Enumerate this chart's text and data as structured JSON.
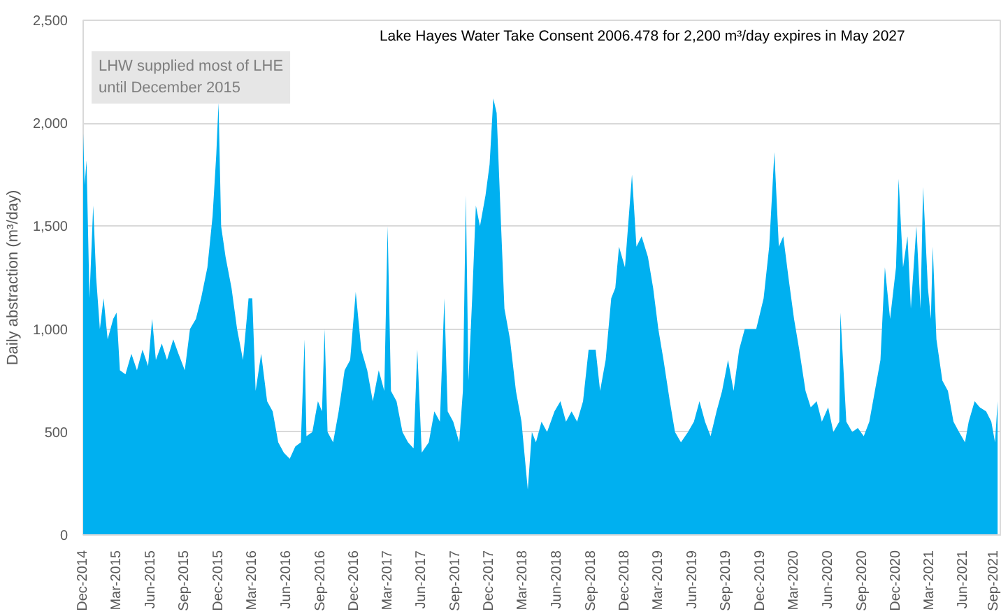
{
  "chart_data": {
    "type": "area",
    "ylabel": "Daily abstraction (m³/day)",
    "annotations": [
      "Lake Hayes Water Take Consent 2006.478 for 2,200 m³/day expires in May 2027",
      "LHW supplied most of LHE\nuntil December 2015"
    ],
    "x": [
      "2014-12-01",
      "2014-12-05",
      "2014-12-10",
      "2014-12-18",
      "2014-12-28",
      "2015-01-05",
      "2015-01-15",
      "2015-01-25",
      "2015-02-05",
      "2015-02-20",
      "2015-03-01",
      "2015-03-10",
      "2015-03-25",
      "2015-04-10",
      "2015-04-25",
      "2015-05-10",
      "2015-05-25",
      "2015-06-05",
      "2015-06-15",
      "2015-07-01",
      "2015-07-15",
      "2015-08-01",
      "2015-08-15",
      "2015-09-01",
      "2015-09-15",
      "2015-10-01",
      "2015-10-15",
      "2015-11-01",
      "2015-11-15",
      "2015-11-25",
      "2015-12-01",
      "2015-12-08",
      "2015-12-20",
      "2016-01-05",
      "2016-01-20",
      "2016-02-05",
      "2016-02-20",
      "2016-03-01",
      "2016-03-10",
      "2016-03-25",
      "2016-04-10",
      "2016-04-25",
      "2016-05-10",
      "2016-05-25",
      "2016-06-10",
      "2016-06-25",
      "2016-07-10",
      "2016-07-20",
      "2016-07-25",
      "2016-08-10",
      "2016-08-25",
      "2016-09-05",
      "2016-09-12",
      "2016-09-20",
      "2016-10-05",
      "2016-10-20",
      "2016-11-05",
      "2016-11-20",
      "2016-12-05",
      "2016-12-20",
      "2017-01-05",
      "2017-01-20",
      "2017-02-05",
      "2017-02-20",
      "2017-03-01",
      "2017-03-10",
      "2017-03-25",
      "2017-04-10",
      "2017-04-25",
      "2017-05-10",
      "2017-05-20",
      "2017-06-01",
      "2017-06-20",
      "2017-07-05",
      "2017-07-20",
      "2017-08-01",
      "2017-08-10",
      "2017-08-25",
      "2017-09-10",
      "2017-09-20",
      "2017-09-28",
      "2017-10-05",
      "2017-10-15",
      "2017-10-25",
      "2017-11-05",
      "2017-11-20",
      "2017-12-01",
      "2017-12-11",
      "2017-12-20",
      "2018-01-01",
      "2018-01-10",
      "2018-01-25",
      "2018-02-10",
      "2018-02-25",
      "2018-03-14",
      "2018-03-25",
      "2018-04-05",
      "2018-04-20",
      "2018-05-05",
      "2018-05-25",
      "2018-06-10",
      "2018-06-25",
      "2018-07-10",
      "2018-07-25",
      "2018-08-10",
      "2018-08-25",
      "2018-09-13",
      "2018-09-25",
      "2018-10-10",
      "2018-10-25",
      "2018-11-05",
      "2018-11-15",
      "2018-12-01",
      "2018-12-20",
      "2019-01-01",
      "2019-01-15",
      "2019-02-01",
      "2019-02-15",
      "2019-03-01",
      "2019-03-15",
      "2019-04-01",
      "2019-04-15",
      "2019-05-01",
      "2019-05-20",
      "2019-06-05",
      "2019-06-20",
      "2019-07-05",
      "2019-07-20",
      "2019-08-05",
      "2019-08-20",
      "2019-09-05",
      "2019-09-20",
      "2019-10-05",
      "2019-10-20",
      "2019-11-05",
      "2019-11-20",
      "2019-12-10",
      "2019-12-25",
      "2020-01-08",
      "2020-01-20",
      "2020-02-01",
      "2020-02-15",
      "2020-03-01",
      "2020-03-15",
      "2020-04-01",
      "2020-04-15",
      "2020-05-01",
      "2020-05-15",
      "2020-06-01",
      "2020-06-15",
      "2020-07-01",
      "2020-07-04",
      "2020-07-20",
      "2020-08-05",
      "2020-08-20",
      "2020-09-05",
      "2020-09-20",
      "2020-10-05",
      "2020-10-20",
      "2020-11-01",
      "2020-11-15",
      "2020-12-01",
      "2020-12-08",
      "2020-12-20",
      "2021-01-01",
      "2021-01-10",
      "2021-01-25",
      "2021-02-05",
      "2021-02-12",
      "2021-02-25",
      "2021-03-05",
      "2021-03-10",
      "2021-03-20",
      "2021-04-05",
      "2021-04-20",
      "2021-05-05",
      "2021-05-20",
      "2021-06-05",
      "2021-06-15",
      "2021-07-01",
      "2021-07-15",
      "2021-08-01",
      "2021-08-15",
      "2021-08-25",
      "2021-09-01"
    ],
    "series": [
      {
        "color": "#00b0f0",
        "values": [
          1950,
          1700,
          1820,
          1150,
          1600,
          1250,
          1000,
          1150,
          950,
          1050,
          1080,
          800,
          780,
          880,
          800,
          900,
          820,
          1050,
          850,
          930,
          850,
          950,
          880,
          800,
          1000,
          1050,
          1150,
          1300,
          1550,
          1850,
          2100,
          1500,
          1350,
          1200,
          1000,
          850,
          1150,
          1150,
          700,
          880,
          650,
          600,
          450,
          400,
          370,
          430,
          450,
          950,
          480,
          500,
          650,
          600,
          1000,
          500,
          450,
          600,
          800,
          850,
          1180,
          900,
          800,
          650,
          800,
          700,
          1500,
          700,
          650,
          500,
          450,
          420,
          900,
          400,
          450,
          600,
          550,
          1150,
          600,
          550,
          450,
          700,
          1650,
          750,
          1150,
          1600,
          1500,
          1650,
          1800,
          2120,
          2050,
          1500,
          1100,
          950,
          700,
          550,
          220,
          500,
          450,
          550,
          500,
          600,
          650,
          550,
          600,
          550,
          650,
          900,
          900,
          700,
          850,
          1150,
          1200,
          1400,
          1300,
          1750,
          1400,
          1450,
          1350,
          1200,
          1000,
          850,
          650,
          500,
          450,
          500,
          550,
          650,
          550,
          480,
          600,
          700,
          850,
          700,
          900,
          1000,
          1000,
          1000,
          1150,
          1400,
          1860,
          1400,
          1450,
          1250,
          1050,
          900,
          700,
          620,
          650,
          550,
          620,
          500,
          550,
          1080,
          550,
          500,
          520,
          480,
          550,
          700,
          850,
          1300,
          1050,
          1300,
          1730,
          1300,
          1450,
          1100,
          1500,
          1100,
          1690,
          1200,
          1050,
          1400,
          950,
          750,
          700,
          550,
          500,
          450,
          550,
          650,
          620,
          600,
          550,
          450,
          650
        ]
      }
    ],
    "xlim": [
      "2014-12-01",
      "2021-09-12"
    ],
    "xticks": [
      {
        "value": "2014-12-01",
        "label": "Dec-2014"
      },
      {
        "value": "2015-03-01",
        "label": "Mar-2015"
      },
      {
        "value": "2015-06-01",
        "label": "Jun-2015"
      },
      {
        "value": "2015-09-01",
        "label": "Sep-2015"
      },
      {
        "value": "2015-12-01",
        "label": "Dec-2015"
      },
      {
        "value": "2016-03-01",
        "label": "Mar-2016"
      },
      {
        "value": "2016-06-01",
        "label": "Jun-2016"
      },
      {
        "value": "2016-09-01",
        "label": "Sep-2016"
      },
      {
        "value": "2016-12-01",
        "label": "Dec-2016"
      },
      {
        "value": "2017-03-01",
        "label": "Mar-2017"
      },
      {
        "value": "2017-06-01",
        "label": "Jun-2017"
      },
      {
        "value": "2017-09-01",
        "label": "Sep-2017"
      },
      {
        "value": "2017-12-01",
        "label": "Dec-2017"
      },
      {
        "value": "2018-03-01",
        "label": "Mar-2018"
      },
      {
        "value": "2018-06-01",
        "label": "Jun-2018"
      },
      {
        "value": "2018-09-01",
        "label": "Sep-2018"
      },
      {
        "value": "2018-12-01",
        "label": "Dec-2018"
      },
      {
        "value": "2019-03-01",
        "label": "Mar-2019"
      },
      {
        "value": "2019-06-01",
        "label": "Jun-2019"
      },
      {
        "value": "2019-09-01",
        "label": "Sep-2019"
      },
      {
        "value": "2019-12-01",
        "label": "Dec-2019"
      },
      {
        "value": "2020-03-01",
        "label": "Mar-2020"
      },
      {
        "value": "2020-06-01",
        "label": "Jun-2020"
      },
      {
        "value": "2020-09-01",
        "label": "Sep-2020"
      },
      {
        "value": "2020-12-01",
        "label": "Dec-2020"
      },
      {
        "value": "2021-03-01",
        "label": "Mar-2021"
      },
      {
        "value": "2021-06-01",
        "label": "Jun-2021"
      },
      {
        "value": "2021-09-01",
        "label": "Sep-2021"
      }
    ],
    "ylim": [
      0,
      2500
    ],
    "yticks": [
      0,
      500,
      {
        "value": 1000,
        "label": "1,000"
      },
      {
        "value": 1500,
        "label": "1,500"
      },
      {
        "value": 2000,
        "label": "2,000"
      },
      {
        "value": 2500,
        "label": "2,500"
      }
    ],
    "grid": "y"
  }
}
